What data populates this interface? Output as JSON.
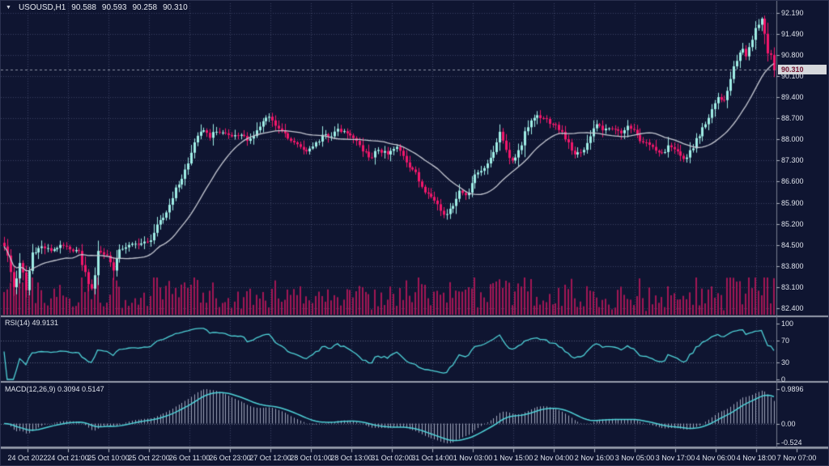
{
  "header": {
    "symbol": "USOUSD,H1",
    "open": "90.588",
    "high": "90.593",
    "low": "90.258",
    "close": "90.310"
  },
  "colors": {
    "background": "#0f1531",
    "grid": "#3c4364",
    "level_line": "#5a6180",
    "axis_line": "#767d90",
    "tick": "#aab0bd",
    "text": "#dfe3ec",
    "bull_candle": "#9feee6",
    "bear_candle": "#f2176b",
    "volume_bar": "#a21754",
    "moving_average": "#c6c9d3",
    "indicator_line": "#4fd2d8",
    "macd_histogram": "#c3cadf",
    "separator": "#969cab",
    "bid_line": "#8d93a3",
    "price_tag_bg": "#d6d8dc",
    "price_tag_text": "#701230"
  },
  "chart_data": {
    "type": "candlestick",
    "symbol": "USOUSD",
    "timeframe": "H1",
    "candle_count": 248,
    "last_price": 90.31,
    "last_price_label": "90.310",
    "price_axis_labels": [
      "92.190",
      "91.490",
      "90.800",
      "90.100",
      "89.400",
      "88.700",
      "88.000",
      "87.300",
      "86.600",
      "85.900",
      "85.200",
      "84.500",
      "83.800",
      "83.100",
      "82.400"
    ],
    "time_axis_labels": [
      "24 Oct 2022",
      "24 Oct 21:00",
      "25 Oct 10:00",
      "25 Oct 22:00",
      "26 Oct 11:00",
      "26 Oct 23:00",
      "27 Oct 12:00",
      "28 Oct 01:00",
      "28 Oct 13:00",
      "31 Oct 02:00",
      "31 Oct 14:00",
      "1 Nov 03:00",
      "1 Nov 15:00",
      "2 Nov 04:00",
      "2 Nov 16:00",
      "3 Nov 05:00",
      "3 Nov 17:00",
      "4 Nov 06:00",
      "4 Nov 18:00",
      "7 Nov 07:00"
    ],
    "close_anchors": [
      [
        0,
        84.45
      ],
      [
        2,
        83.6
      ],
      [
        3,
        83.1
      ],
      [
        5,
        83.9
      ],
      [
        7,
        83.0
      ],
      [
        9,
        84.25
      ],
      [
        12,
        84.45
      ],
      [
        15,
        84.3
      ],
      [
        18,
        84.5
      ],
      [
        21,
        84.35
      ],
      [
        24,
        84.3
      ],
      [
        26,
        83.6
      ],
      [
        28,
        83.05
      ],
      [
        30,
        84.3
      ],
      [
        33,
        84.15
      ],
      [
        35,
        83.65
      ],
      [
        37,
        84.35
      ],
      [
        40,
        84.5
      ],
      [
        44,
        84.55
      ],
      [
        46,
        84.6
      ],
      [
        48,
        84.9
      ],
      [
        51,
        85.4
      ],
      [
        54,
        86.05
      ],
      [
        56,
        86.5
      ],
      [
        59,
        87.2
      ],
      [
        61,
        87.9
      ],
      [
        64,
        88.3
      ],
      [
        66,
        88.05
      ],
      [
        68,
        88.25
      ],
      [
        71,
        88.2
      ],
      [
        73,
        88.1
      ],
      [
        76,
        88.15
      ],
      [
        78,
        87.95
      ],
      [
        81,
        88.3
      ],
      [
        83,
        88.6
      ],
      [
        85,
        88.75
      ],
      [
        87,
        88.45
      ],
      [
        90,
        88.2
      ],
      [
        92,
        87.95
      ],
      [
        95,
        87.75
      ],
      [
        97,
        87.6
      ],
      [
        100,
        87.9
      ],
      [
        102,
        88.15
      ],
      [
        105,
        88.1
      ],
      [
        107,
        88.35
      ],
      [
        110,
        88.2
      ],
      [
        113,
        87.95
      ],
      [
        115,
        87.6
      ],
      [
        118,
        87.4
      ],
      [
        120,
        87.65
      ],
      [
        123,
        87.5
      ],
      [
        126,
        87.75
      ],
      [
        128,
        87.45
      ],
      [
        131,
        87.0
      ],
      [
        133,
        86.6
      ],
      [
        136,
        86.2
      ],
      [
        139,
        85.85
      ],
      [
        141,
        85.5
      ],
      [
        143,
        85.7
      ],
      [
        146,
        86.3
      ],
      [
        148,
        86.15
      ],
      [
        150,
        86.55
      ],
      [
        152,
        86.9
      ],
      [
        155,
        87.2
      ],
      [
        158,
        87.9
      ],
      [
        159,
        88.25
      ],
      [
        161,
        87.65
      ],
      [
        163,
        87.3
      ],
      [
        166,
        87.8
      ],
      [
        168,
        88.4
      ],
      [
        171,
        88.8
      ],
      [
        173,
        88.7
      ],
      [
        176,
        88.5
      ],
      [
        179,
        88.25
      ],
      [
        181,
        87.9
      ],
      [
        183,
        87.5
      ],
      [
        186,
        87.65
      ],
      [
        188,
        88.1
      ],
      [
        190,
        88.5
      ],
      [
        192,
        88.3
      ],
      [
        195,
        88.35
      ],
      [
        198,
        88.2
      ],
      [
        200,
        88.45
      ],
      [
        203,
        88.15
      ],
      [
        205,
        87.9
      ],
      [
        208,
        87.75
      ],
      [
        211,
        87.55
      ],
      [
        213,
        87.8
      ],
      [
        216,
        87.6
      ],
      [
        218,
        87.35
      ],
      [
        221,
        87.7
      ],
      [
        223,
        88.1
      ],
      [
        225,
        88.5
      ],
      [
        227,
        89.0
      ],
      [
        229,
        89.4
      ],
      [
        231,
        89.3
      ],
      [
        233,
        90.0
      ],
      [
        235,
        90.6
      ],
      [
        237,
        91.0
      ],
      [
        238,
        90.75
      ],
      [
        240,
        91.3
      ],
      [
        242,
        91.8
      ],
      [
        243,
        92.0
      ],
      [
        244,
        91.5
      ],
      [
        245,
        90.85
      ],
      [
        246,
        90.8
      ],
      [
        247,
        90.31
      ]
    ],
    "moving_average": {
      "type": "SMA",
      "period": 21
    },
    "rsi": {
      "label": "RSI(14) 49.9131",
      "period": 14,
      "last_value": 49.9131,
      "scale_labels": [
        "100",
        "70",
        "30",
        "0"
      ],
      "levels": [
        70,
        30
      ]
    },
    "macd": {
      "label": "MACD(12,26,9) 0.3094 0.5147",
      "fast": 12,
      "slow": 26,
      "signal": 9,
      "main_value": 0.3094,
      "signal_value": 0.5147,
      "scale_max_label": "0.9896",
      "scale_zero_label": "0.00",
      "scale_min_label": "-0.524"
    }
  }
}
